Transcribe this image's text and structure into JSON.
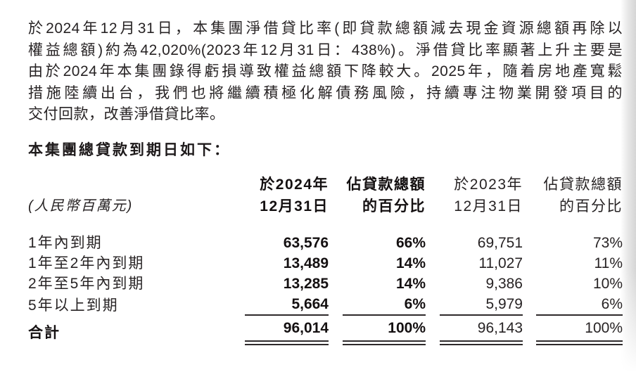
{
  "intro": {
    "lines": [
      "於2024年12月31日，本集團淨借貸比率(即貸款總額減去現金資源總額再除以",
      "權益總額)約為42,020%(2023年12月31日：438%)。淨借貸比率顯著上升主要是",
      "由於2024年本集團錄得虧損導致權益總額下降較大。2025年，隨着房地產寬鬆",
      "措施陸續出台，我們也將繼續積極化解債務風險，持續專注物業開發項目的",
      "交付回款，改善淨借貸比率。"
    ]
  },
  "section_heading": "本集團總貸款到期日如下：",
  "table": {
    "unit_label": "(人民幣百萬元)",
    "col_headers": {
      "y2024": [
        "於2024年",
        "12月31日"
      ],
      "pct2024": [
        "佔貸款總額",
        "的百分比"
      ],
      "y2023": [
        "於2023年",
        "12月31日"
      ],
      "pct2023": [
        "佔貸款總額",
        "的百分比"
      ]
    },
    "rows": [
      {
        "label": "1年內到期",
        "v2024": "63,576",
        "p2024": "66%",
        "v2023": "69,751",
        "p2023": "73%"
      },
      {
        "label": "1年至2年內到期",
        "v2024": "13,489",
        "p2024": "14%",
        "v2023": "11,027",
        "p2023": "11%"
      },
      {
        "label": "2年至5年內到期",
        "v2024": "13,285",
        "p2024": "14%",
        "v2023": "9,386",
        "p2023": "10%"
      },
      {
        "label": "5年以上到期",
        "v2024": "5,664",
        "p2024": "6%",
        "v2023": "5,979",
        "p2023": "6%"
      }
    ],
    "total": {
      "label": "合計",
      "v2024": "96,014",
      "p2024": "100%",
      "v2023": "96,143",
      "p2023": "100%"
    }
  },
  "colors": {
    "text": "#272324",
    "rule": "#2e2a2b",
    "edge_shadow": "#d5d5d5"
  }
}
